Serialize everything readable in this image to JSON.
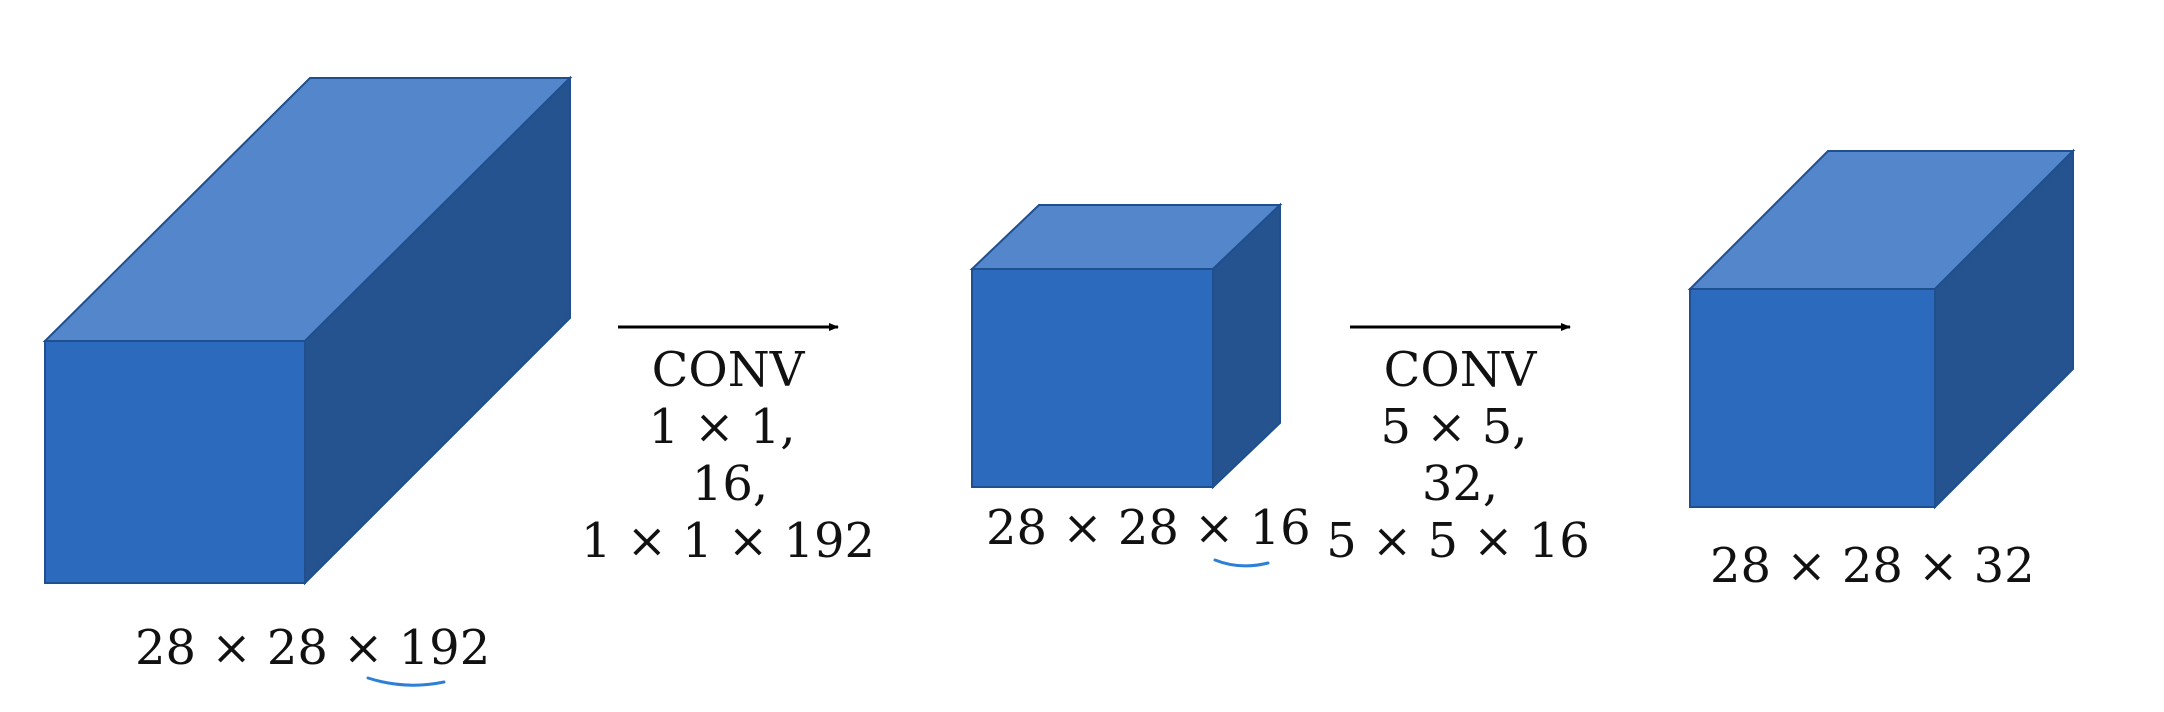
{
  "colors": {
    "front_face": "#2B6ABD",
    "top_face": "#5486CB",
    "side_face": "#24538F",
    "edge": "#1F4F8E",
    "arrow": "#000000",
    "text": "#111111",
    "underline": "#2E7FD6"
  },
  "volumes": [
    {
      "name": "input-volume",
      "label_prefix": "28 × 28 × ",
      "label_channels": "192"
    },
    {
      "name": "bottleneck-volume",
      "label_prefix": "28 × 28 × ",
      "label_channels": "16"
    },
    {
      "name": "output-volume",
      "label_prefix": "28 × 28 × ",
      "label_channels": "32"
    }
  ],
  "operations": [
    {
      "name": "conv-1x1",
      "lines": [
        "CONV",
        "1 × 1,",
        "16,",
        "1 × 1 × 192"
      ]
    },
    {
      "name": "conv-5x5",
      "lines": [
        "CONV",
        "5 × 5,",
        "32,",
        "5 × 5 × 16"
      ]
    }
  ]
}
